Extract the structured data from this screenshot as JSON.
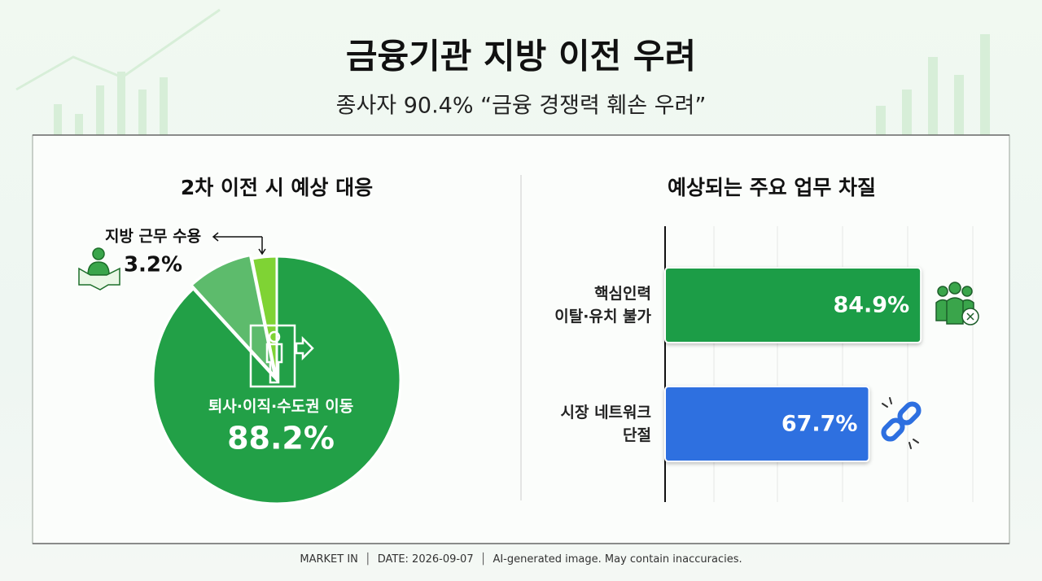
{
  "title": "금융기관 지방 이전 우려",
  "subtitle": "종사자 90.4% “금융 경쟁력 훼손 우려”",
  "chart_data": [
    {
      "type": "pie",
      "title": "2차 이전 시 예상 대응",
      "categories": [
        "퇴사·이직·수도권 이동",
        null,
        "지방 근무 수용"
      ],
      "values": [
        88.2,
        8.6,
        3.2
      ],
      "value_labels": [
        "88.2%",
        null,
        "3.2%"
      ],
      "colors": [
        "#22a047",
        "#5dbb6c",
        "#7fd334"
      ]
    },
    {
      "type": "barh",
      "title": "예상되는 주요 업무 차질",
      "categories": [
        "핵심인력\n이탈·유치 불가",
        "시장 네트워크\n단절"
      ],
      "values": [
        84.9,
        67.7
      ],
      "value_labels": [
        "84.9%",
        "67.7%"
      ],
      "colors": [
        "#1f9d46",
        "#2d6fe0"
      ],
      "xlim": [
        0,
        100
      ]
    }
  ],
  "footer": {
    "source": "MARKET IN",
    "date": "DATE: 2026-09-07",
    "note": "AI-generated image. May contain inaccuracies."
  }
}
